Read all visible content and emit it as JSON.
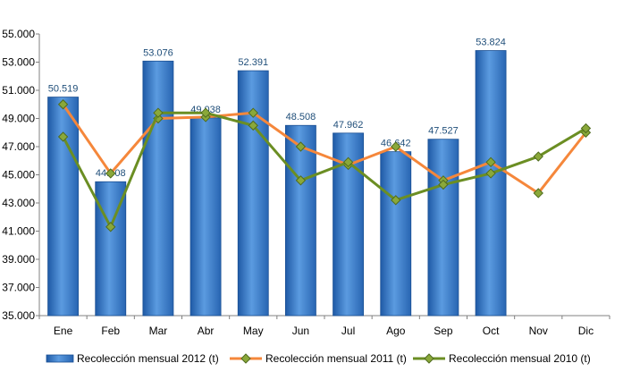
{
  "chart_data": {
    "type": "bar",
    "title": "",
    "xlabel": "",
    "ylabel": "",
    "categories": [
      "Ene",
      "Feb",
      "Mar",
      "Abr",
      "May",
      "Jun",
      "Jul",
      "Ago",
      "Sep",
      "Oct",
      "Nov",
      "Dic"
    ],
    "ylim": [
      35000,
      55000
    ],
    "yticks": [
      35000,
      37000,
      39000,
      41000,
      43000,
      45000,
      47000,
      49000,
      51000,
      53000,
      55000
    ],
    "ytick_labels": [
      "35.000",
      "37.000",
      "39.000",
      "41.000",
      "43.000",
      "45.000",
      "47.000",
      "49.000",
      "51.000",
      "53.000",
      "55.000"
    ],
    "grid": false,
    "legend_position": "bottom",
    "series": [
      {
        "name": "Recolección mensual 2012 (t)",
        "type": "bar",
        "color": "#3a78c4",
        "values": [
          50519,
          44508,
          53076,
          49038,
          52391,
          48508,
          47962,
          46642,
          47527,
          53824,
          null,
          null
        ],
        "data_labels": [
          "50.519",
          "44.508",
          "53.076",
          "49.038",
          "52.391",
          "48.508",
          "47.962",
          "46.642",
          "47.527",
          "53.824",
          "",
          ""
        ]
      },
      {
        "name": "Recolección mensual 2011 (t)",
        "type": "line",
        "color": "#f5873b",
        "values": [
          50000,
          45100,
          49000,
          49100,
          49400,
          47000,
          45700,
          47000,
          44600,
          45900,
          43700,
          48000
        ]
      },
      {
        "name": "Recolección mensual 2010 (t)",
        "type": "line",
        "color": "#6b8e23",
        "values": [
          47700,
          41300,
          49400,
          49400,
          48500,
          44600,
          45900,
          43200,
          44300,
          45100,
          46300,
          48300
        ]
      }
    ]
  }
}
